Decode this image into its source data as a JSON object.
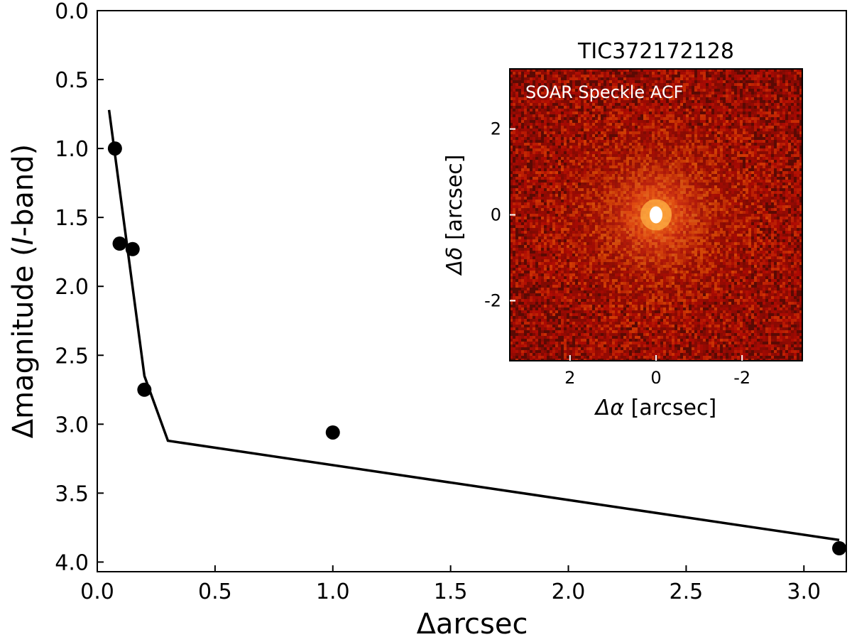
{
  "chart_data": [
    {
      "type": "scatter",
      "xlabel": "Δarcsec",
      "ylabel_prefix": "Δmagnitude (",
      "ylabel_italic": "I",
      "ylabel_suffix": "-band)",
      "xlim": [
        0.0,
        3.18
      ],
      "ylim": [
        4.07,
        0.0
      ],
      "y_inverted": true,
      "xticks": [
        0.0,
        0.5,
        1.0,
        1.5,
        2.0,
        2.5,
        3.0
      ],
      "xtick_labels": [
        "0.0",
        "0.5",
        "1.0",
        "1.5",
        "2.0",
        "2.5",
        "3.0"
      ],
      "yticks": [
        0.0,
        0.5,
        1.0,
        1.5,
        2.0,
        2.5,
        3.0,
        3.5,
        4.0
      ],
      "ytick_labels": [
        "0.0",
        "0.5",
        "1.0",
        "1.5",
        "2.0",
        "2.5",
        "3.0",
        "3.5",
        "4.0"
      ],
      "points": [
        {
          "x": 0.075,
          "y": 1.0
        },
        {
          "x": 0.095,
          "y": 1.69
        },
        {
          "x": 0.15,
          "y": 1.73
        },
        {
          "x": 0.2,
          "y": 2.75
        },
        {
          "x": 1.0,
          "y": 3.06
        },
        {
          "x": 3.15,
          "y": 3.9
        }
      ],
      "contrast_curve": [
        {
          "x": 0.05,
          "y": 0.72
        },
        {
          "x": 0.2,
          "y": 2.65
        },
        {
          "x": 0.3,
          "y": 3.12
        },
        {
          "x": 3.15,
          "y": 3.84
        }
      ],
      "colors": {
        "points": "#000000",
        "curve": "#000000"
      }
    },
    {
      "type": "heatmap",
      "title": "TIC372172128",
      "annotation": "SOAR Speckle ACF",
      "xlabel_symbol": "Δα",
      "xlabel_unit": "[arcsec]",
      "ylabel_symbol": "Δδ",
      "ylabel_unit": "[arcsec]",
      "xlim": [
        3.4,
        -3.4
      ],
      "ylim": [
        -3.4,
        3.4
      ],
      "xticks": [
        2,
        0,
        -2
      ],
      "xtick_labels": [
        "2",
        "0",
        "-2"
      ],
      "yticks": [
        2,
        0,
        -2
      ],
      "ytick_labels": [
        "2",
        "0",
        "-2"
      ],
      "colormap": "hot",
      "colors": {
        "background": "#5a0a04",
        "mid": "#b02a10",
        "peak": "#ffffff"
      }
    }
  ]
}
